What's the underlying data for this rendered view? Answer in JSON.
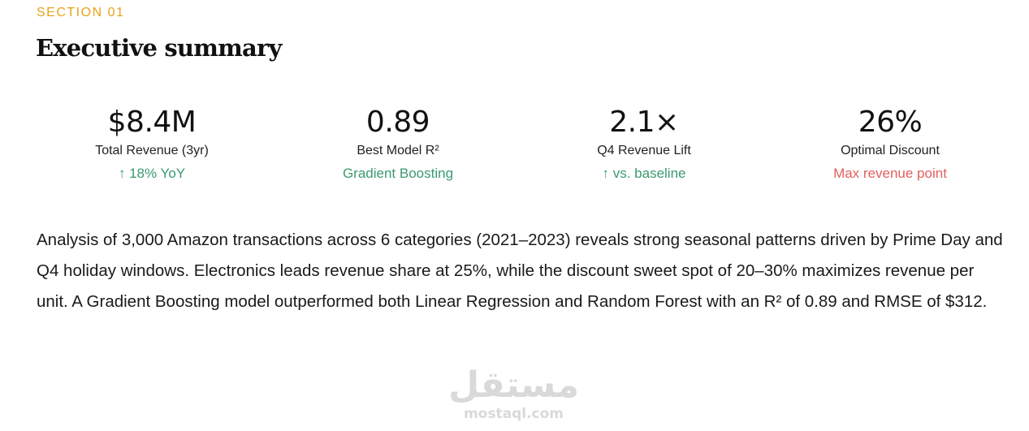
{
  "section": {
    "label": "SECTION 01",
    "title": "Executive summary"
  },
  "stats": [
    {
      "value": "$8.4M",
      "label": "Total Revenue (3yr)",
      "note": "↑ 18% YoY",
      "note_tone": "positive"
    },
    {
      "value": "0.89",
      "label": "Best Model R²",
      "note": "Gradient Boosting",
      "note_tone": "positive"
    },
    {
      "value": "2.1×",
      "label": "Q4 Revenue Lift",
      "note": "↑ vs. baseline",
      "note_tone": "positive"
    },
    {
      "value": "26%",
      "label": "Optimal Discount",
      "note": "Max revenue point",
      "note_tone": "negative"
    }
  ],
  "summary": "Analysis of 3,000 Amazon transactions across 6 categories (2021–2023) reveals strong seasonal patterns driven by Prime Day and Q4 holiday windows. Electronics leads revenue share at 25%, while the discount sweet spot of 20–30% maximizes revenue per unit. A Gradient Boosting model outperformed both Linear Regression and Random Forest with an R² of 0.89 and RMSE of $312.",
  "watermark": {
    "arabic": "مستقل",
    "latin": "mostaql.com"
  },
  "colors": {
    "accent": "#e8a317",
    "positive": "#3a9a6e",
    "negative": "#e0605d"
  }
}
